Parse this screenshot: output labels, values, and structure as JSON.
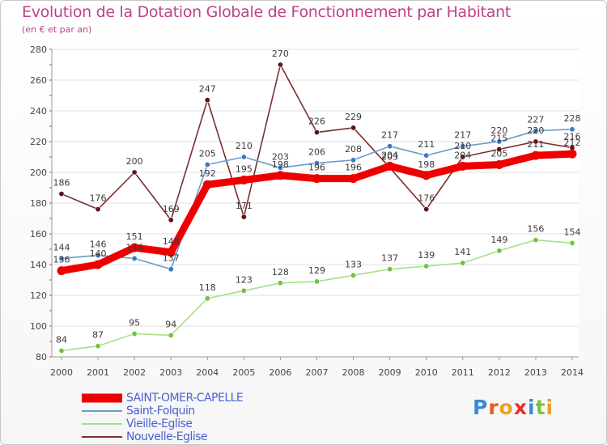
{
  "header": {
    "title": "Evolution de la Dotation Globale de Fonctionnement par Habitant",
    "subtitle": "(en € et par an)"
  },
  "brand": {
    "text": "Proxiti"
  },
  "chart_data": {
    "type": "line",
    "categories": [
      "2000",
      "2001",
      "2002",
      "2003",
      "2004",
      "2005",
      "2006",
      "2007",
      "2008",
      "2009",
      "2010",
      "2011",
      "2012",
      "2013",
      "2014"
    ],
    "ylim": [
      80,
      280
    ],
    "yticks": [
      80,
      100,
      120,
      140,
      160,
      180,
      200,
      220,
      240,
      260,
      280
    ],
    "grid": true,
    "legend_position": "bottom-left",
    "series": [
      {
        "name": "SAINT-OMER-CAPELLE",
        "color": "#ee0000",
        "point_color": "#ee0000",
        "emphasis": "thick",
        "values": [
          136,
          140,
          151,
          148,
          192,
          195,
          198,
          196,
          196,
          204,
          198,
          204,
          205,
          211,
          212
        ]
      },
      {
        "name": "Saint-Folquin",
        "color": "#6a9ccf",
        "point_color": "#3a78c2",
        "emphasis": "thin",
        "values": [
          144,
          146,
          144,
          137,
          205,
          210,
          203,
          206,
          208,
          217,
          211,
          217,
          220,
          227,
          228
        ]
      },
      {
        "name": "Vieille-Eglise",
        "color": "#a6e08a",
        "point_color": "#6ec43e",
        "emphasis": "thin",
        "values": [
          84,
          87,
          95,
          94,
          118,
          123,
          128,
          129,
          133,
          137,
          139,
          141,
          149,
          156,
          154
        ]
      },
      {
        "name": "Nouvelle-Eglise",
        "color": "#7a2e2e",
        "point_color": "#5a1616",
        "emphasis": "thin",
        "values": [
          186,
          176,
          200,
          169,
          247,
          171,
          270,
          226,
          229,
          203,
          176,
          210,
          215,
          220,
          216
        ]
      }
    ],
    "data_labels": [
      [
        "136",
        "140",
        "151",
        "148",
        "192",
        "195",
        "198",
        "196",
        "196",
        "204",
        "198",
        "204",
        "205",
        "211",
        "212"
      ],
      [
        "144",
        "146",
        "144",
        "137",
        "205",
        "210",
        "203",
        "206",
        "208",
        "217",
        "211",
        "217",
        "220",
        "227",
        "228"
      ],
      [
        "84",
        "87",
        "95",
        "94",
        "118",
        "123",
        "128",
        "129",
        "133",
        "137",
        "139",
        "141",
        "149",
        "156",
        "154"
      ],
      [
        "186",
        "176",
        "200",
        "169",
        "247",
        "171",
        "270",
        "226",
        "229",
        "203",
        "176",
        "210",
        "215",
        "220",
        "216"
      ]
    ]
  }
}
